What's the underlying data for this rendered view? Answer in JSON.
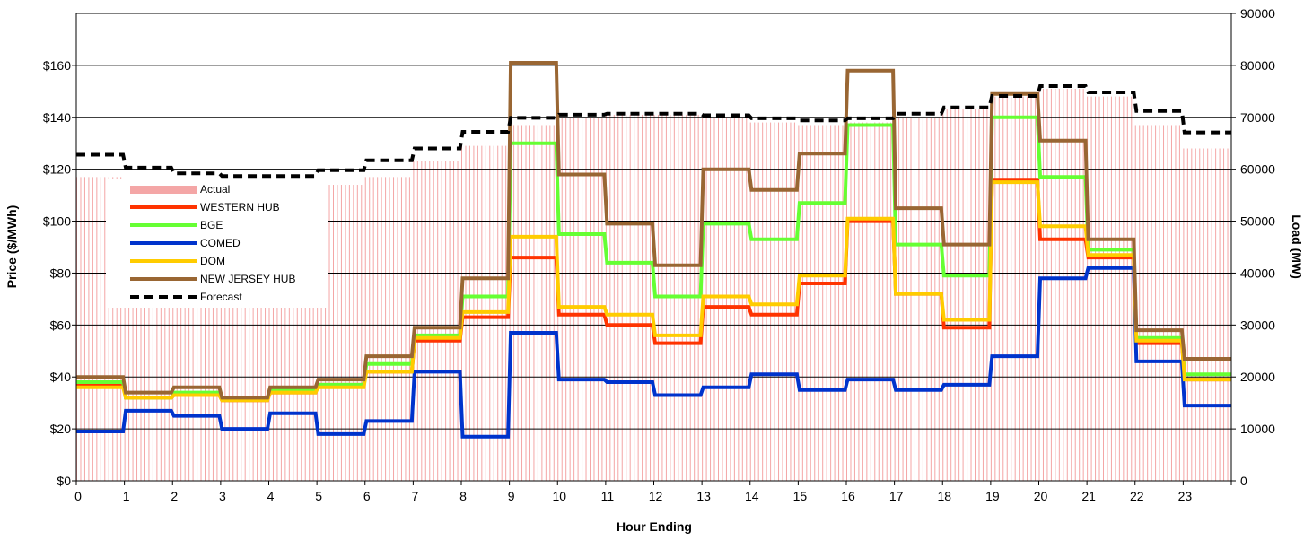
{
  "chart_data": {
    "type": "line",
    "title": "",
    "xlabel": "Hour Ending",
    "ylabel_left": "Price ($/MWh)",
    "ylabel_right": "Load (MW)",
    "ylim_left": [
      0,
      180
    ],
    "ylim_right": [
      0,
      90000
    ],
    "yticks_left": [
      "$0",
      "$20",
      "$40",
      "$60",
      "$80",
      "$100",
      "$120",
      "$140",
      "$160"
    ],
    "yticks_right": [
      "0",
      "10000",
      "20000",
      "30000",
      "40000",
      "50000",
      "60000",
      "70000",
      "80000",
      "90000"
    ],
    "x_tick_labels": [
      "0",
      "1",
      "2",
      "3",
      "4",
      "5",
      "6",
      "7",
      "8",
      "9",
      "10",
      "11",
      "12",
      "13",
      "14",
      "15",
      "16",
      "17",
      "18",
      "19",
      "20",
      "21",
      "22",
      "23"
    ],
    "grid": "horizontal major lines at every $20",
    "legend_placement": "left",
    "colors": {
      "actual": "#f4a6a6",
      "western_hub": "#ff3300",
      "bge": "#66ff33",
      "comed": "#0033cc",
      "dom": "#ffcc00",
      "nj_hub": "#996633",
      "forecast": "#000000"
    },
    "series": [
      {
        "name": "WESTERN HUB",
        "axis": "left",
        "values": [
          37,
          32,
          33,
          31,
          34,
          37,
          42,
          54,
          63,
          86,
          64,
          60,
          53,
          67,
          64,
          76,
          100,
          72,
          59,
          116,
          93,
          86,
          53,
          39
        ]
      },
      {
        "name": "BGE",
        "axis": "left",
        "values": [
          38,
          32,
          34,
          32,
          35,
          37,
          45,
          56,
          71,
          130,
          95,
          84,
          71,
          99,
          93,
          107,
          137,
          91,
          79,
          140,
          117,
          89,
          55,
          41
        ]
      },
      {
        "name": "COMED",
        "axis": "left",
        "values": [
          19,
          27,
          25,
          20,
          26,
          18,
          23,
          42,
          17,
          57,
          39,
          38,
          33,
          36,
          41,
          35,
          39,
          35,
          37,
          48,
          78,
          82,
          46,
          29
        ]
      },
      {
        "name": "DOM",
        "axis": "left",
        "values": [
          36,
          32,
          33,
          31,
          34,
          36,
          42,
          55,
          65,
          94,
          67,
          64,
          56,
          71,
          68,
          79,
          101,
          72,
          62,
          115,
          98,
          87,
          54,
          39
        ]
      },
      {
        "name": "NEW JERSEY HUB",
        "axis": "left",
        "values": [
          40,
          34,
          36,
          32,
          36,
          39,
          48,
          59,
          78,
          161,
          118,
          99,
          83,
          120,
          112,
          126,
          158,
          105,
          91,
          149,
          131,
          93,
          58,
          47
        ]
      },
      {
        "name": "Forecast",
        "axis": "right",
        "values": [
          62800,
          60300,
          59200,
          58700,
          58700,
          59800,
          61700,
          64000,
          67200,
          69900,
          70500,
          70700,
          70700,
          70400,
          69800,
          69400,
          69800,
          70700,
          71900,
          74100,
          76000,
          74800,
          71200,
          67100
        ]
      }
    ],
    "actual_series": {
      "name": "Actual",
      "axis": "right",
      "values": [
        58500,
        57000,
        56500,
        56000,
        56500,
        57000,
        58500,
        61500,
        64500,
        68500,
        70000,
        70500,
        70500,
        70000,
        69000,
        68500,
        69000,
        70000,
        71500,
        74000,
        75500,
        74000,
        68500,
        64000
      ]
    }
  }
}
